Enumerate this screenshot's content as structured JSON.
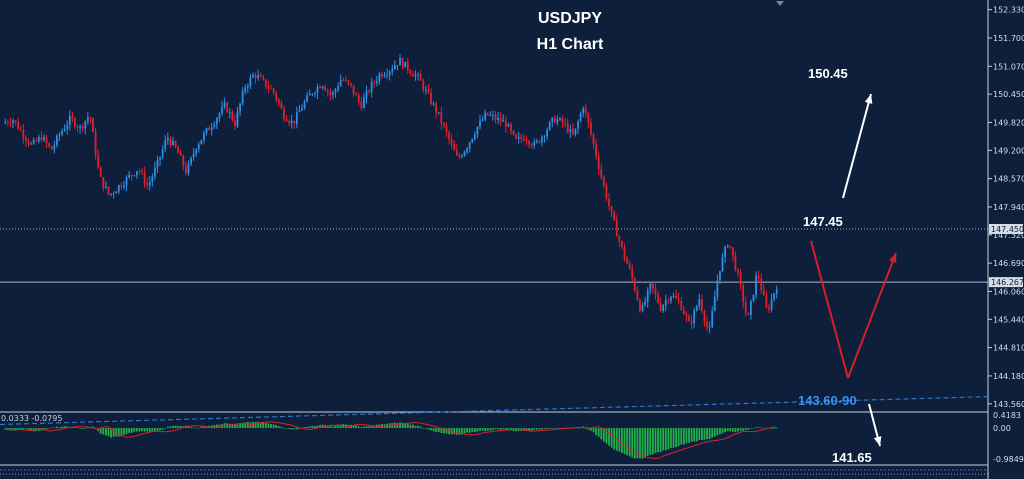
{
  "chart": {
    "title_line1": "USDJPY",
    "title_line2": "H1 Chart"
  },
  "annotations": {
    "target_high": "150.45",
    "level_mid": "147.45",
    "support_zone": "143.60-90",
    "target_low": "141.65"
  },
  "indicator": {
    "label": "0.0333 -0.0795"
  },
  "colors": {
    "background": "#0d1f3b",
    "bull_candle": "#2e8fe6",
    "bear_candle": "#e0202a",
    "grid_line": "#c8d0dc",
    "trend_line": "#2e73c8",
    "osc_bar": "#22b04a",
    "osc_signal": "#e0202a",
    "arrow_up_white": "#ffffff",
    "arrow_red": "#d81e28"
  },
  "chart_data": {
    "type": "candlestick",
    "symbol": "USDJPY",
    "timeframe": "H1",
    "price_axis_ticks": [
      "152.330",
      "151.700",
      "151.070",
      "150.450",
      "149.820",
      "149.200",
      "148.570",
      "147.940",
      "147.320",
      "146.690",
      "146.060",
      "145.440",
      "144.810",
      "144.180",
      "143.560"
    ],
    "price_range": [
      143.4,
      152.5
    ],
    "horizontal_levels": [
      {
        "value": 147.45,
        "style": "dotted",
        "label": "147.450"
      },
      {
        "value": 146.267,
        "style": "solid",
        "label": "146.267"
      }
    ],
    "trend_line": {
      "from": 143.1,
      "to": 143.72,
      "style": "dashed"
    },
    "close_path": [
      149.8,
      149.9,
      149.6,
      149.3,
      149.5,
      149.2,
      149.6,
      149.9,
      149.7,
      150.0,
      148.6,
      148.2,
      148.4,
      148.6,
      148.8,
      148.4,
      148.9,
      149.5,
      149.2,
      148.7,
      149.3,
      149.6,
      149.9,
      150.2,
      149.8,
      150.6,
      150.9,
      150.7,
      150.5,
      150.0,
      149.8,
      150.2,
      150.5,
      150.7,
      150.4,
      150.8,
      150.6,
      150.2,
      150.6,
      150.9,
      151.0,
      151.2,
      151.0,
      150.8,
      150.4,
      150.0,
      149.5,
      149.0,
      149.3,
      149.7,
      150.0,
      149.9,
      149.8,
      149.4,
      149.5,
      149.3,
      149.6,
      149.9,
      149.8,
      149.5,
      150.2,
      149.4,
      148.5,
      147.7,
      147.0,
      146.4,
      145.6,
      146.2,
      145.7,
      146.0,
      145.8,
      145.3,
      145.9,
      145.1,
      146.5,
      147.2,
      146.4,
      145.4,
      146.5,
      145.6,
      146.2
    ],
    "oscillator": {
      "label": "0.0333 -0.0795",
      "axis_ticks": [
        "0.4183",
        "0.00",
        "-0.9849"
      ],
      "range": [
        -1.15,
        0.45
      ],
      "values": [
        -0.05,
        -0.08,
        -0.02,
        -0.1,
        -0.05,
        0.02,
        0.05,
        0.03,
        -0.02,
        0.06,
        -0.2,
        -0.3,
        -0.25,
        -0.15,
        -0.1,
        -0.12,
        -0.08,
        0.05,
        0.08,
        0.06,
        0.0,
        0.08,
        0.12,
        0.15,
        0.1,
        0.18,
        0.2,
        0.16,
        0.1,
        0.0,
        -0.05,
        0.02,
        0.08,
        0.1,
        0.05,
        0.12,
        0.1,
        0.03,
        0.08,
        0.12,
        0.15,
        0.18,
        0.12,
        0.05,
        -0.05,
        -0.15,
        -0.2,
        -0.22,
        -0.15,
        -0.1,
        -0.08,
        -0.04,
        -0.06,
        -0.1,
        -0.08,
        -0.06,
        -0.02,
        0.0,
        0.02,
        0.0,
        0.05,
        -0.15,
        -0.4,
        -0.65,
        -0.82,
        -0.95,
        -0.98,
        -0.85,
        -0.75,
        -0.65,
        -0.55,
        -0.45,
        -0.4,
        -0.35,
        -0.2,
        -0.1,
        -0.12,
        -0.05,
        0.03,
        0.01,
        0.0
      ]
    }
  }
}
